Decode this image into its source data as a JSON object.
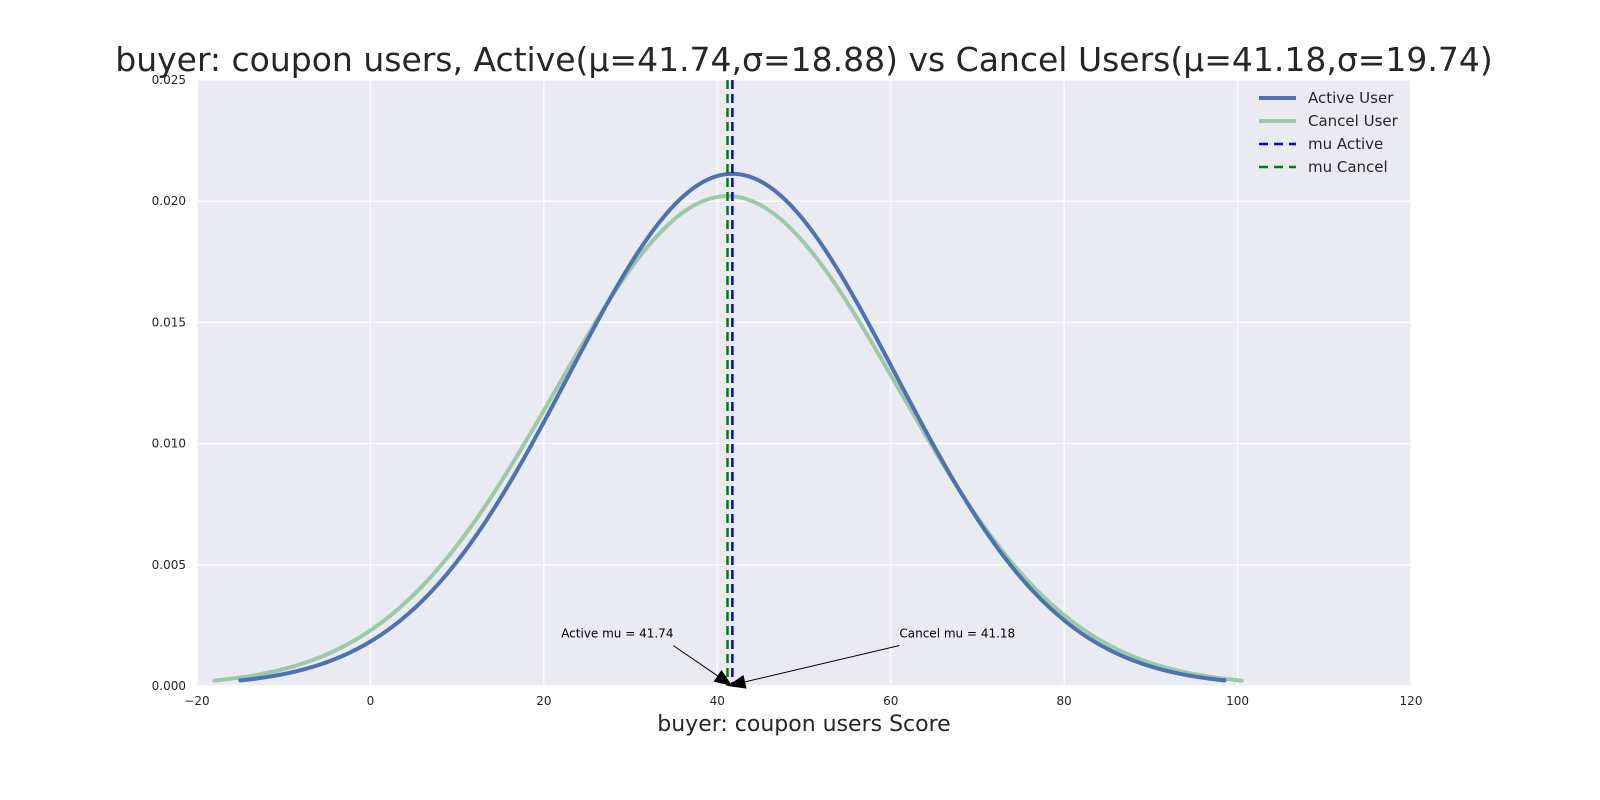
{
  "chart_data": {
    "type": "line",
    "title": "buyer: coupon users, Active(μ=41.74,σ=18.88) vs Cancel Users(μ=41.18,σ=19.74)",
    "xlabel": "buyer: coupon users Score",
    "ylabel": "",
    "xlim": [
      -20,
      120
    ],
    "ylim": [
      0,
      0.025
    ],
    "x_ticks": [
      "−20",
      "0",
      "20",
      "40",
      "60",
      "80",
      "100",
      "120"
    ],
    "x_tick_values": [
      -20,
      0,
      20,
      40,
      60,
      80,
      100,
      120
    ],
    "y_ticks": [
      "0.000",
      "0.005",
      "0.010",
      "0.015",
      "0.020",
      "0.025"
    ],
    "y_tick_values": [
      0,
      0.005,
      0.01,
      0.015,
      0.02,
      0.025
    ],
    "grid": true,
    "legend_position": "top-right",
    "series": [
      {
        "name": "Active User",
        "kind": "normal-pdf",
        "mu": 41.74,
        "sigma": 18.88,
        "x_range": [
          -15,
          98.5
        ],
        "color": "#4c72b0"
      },
      {
        "name": "Cancel User",
        "kind": "normal-pdf",
        "mu": 41.18,
        "sigma": 19.74,
        "x_range": [
          -18,
          100.5
        ],
        "color": "#9ccaa9"
      }
    ],
    "vlines": [
      {
        "name": "mu Active",
        "x": 41.74,
        "color": "#0000ee",
        "style": "dashed"
      },
      {
        "name": "mu Cancel",
        "x": 41.18,
        "color": "#008000",
        "style": "dashed"
      }
    ],
    "annotations": [
      {
        "text": "Active mu = 41.74",
        "target": [
          41.74,
          0
        ],
        "text_at": [
          22,
          0.002
        ]
      },
      {
        "text": "Cancel mu = 41.18",
        "target": [
          41.18,
          0
        ],
        "text_at": [
          61,
          0.002
        ]
      }
    ],
    "colors": {
      "background": "#eaeaf2",
      "grid": "#ffffff",
      "text": "#262626"
    }
  }
}
